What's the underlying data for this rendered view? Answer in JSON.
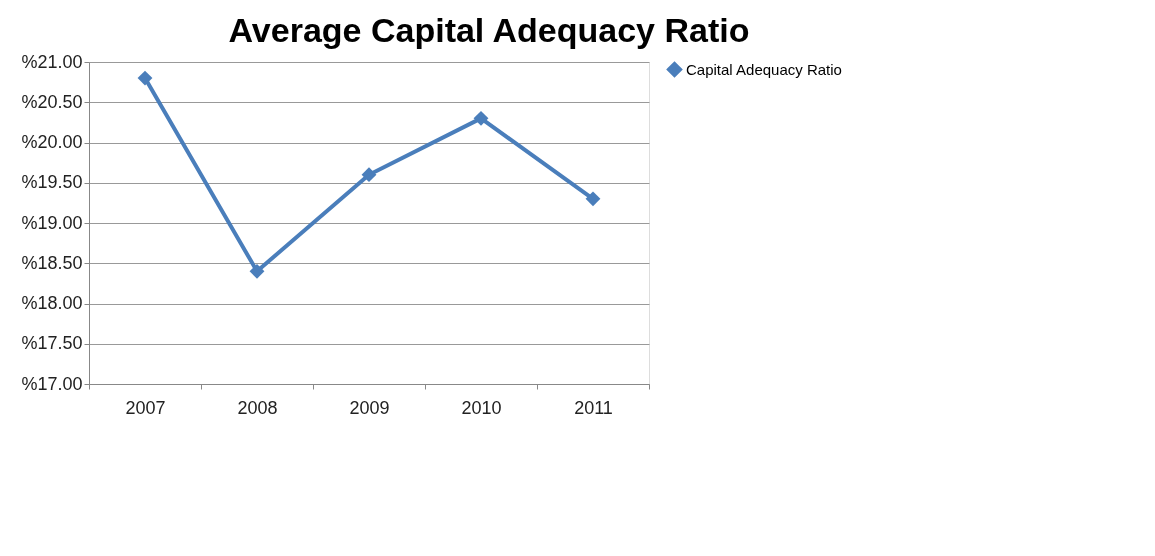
{
  "chart_data": {
    "type": "line",
    "title": "Average Capital Adequacy Ratio",
    "categories": [
      "2007",
      "2008",
      "2009",
      "2010",
      "2011"
    ],
    "series": [
      {
        "name": "Capital Adequacy Ratio",
        "color": "#4a7ebb",
        "values": [
          20.8,
          18.4,
          19.6,
          20.3,
          19.3
        ]
      }
    ],
    "ylim": [
      17,
      21
    ],
    "yticks": [
      {
        "value": 17,
        "label": "%17.00"
      },
      {
        "value": 17.5,
        "label": "%17.50"
      },
      {
        "value": 18,
        "label": "%18.00"
      },
      {
        "value": 18.5,
        "label": "%18.50"
      },
      {
        "value": 19,
        "label": "%19.00"
      },
      {
        "value": 19.5,
        "label": "%19.50"
      },
      {
        "value": 20,
        "label": "%20.00"
      },
      {
        "value": 20.5,
        "label": "%20.50"
      },
      {
        "value": 21,
        "label": "%21.00"
      }
    ],
    "grid": "y",
    "legend": "right",
    "marker": "diamond",
    "line_style": "solid"
  }
}
